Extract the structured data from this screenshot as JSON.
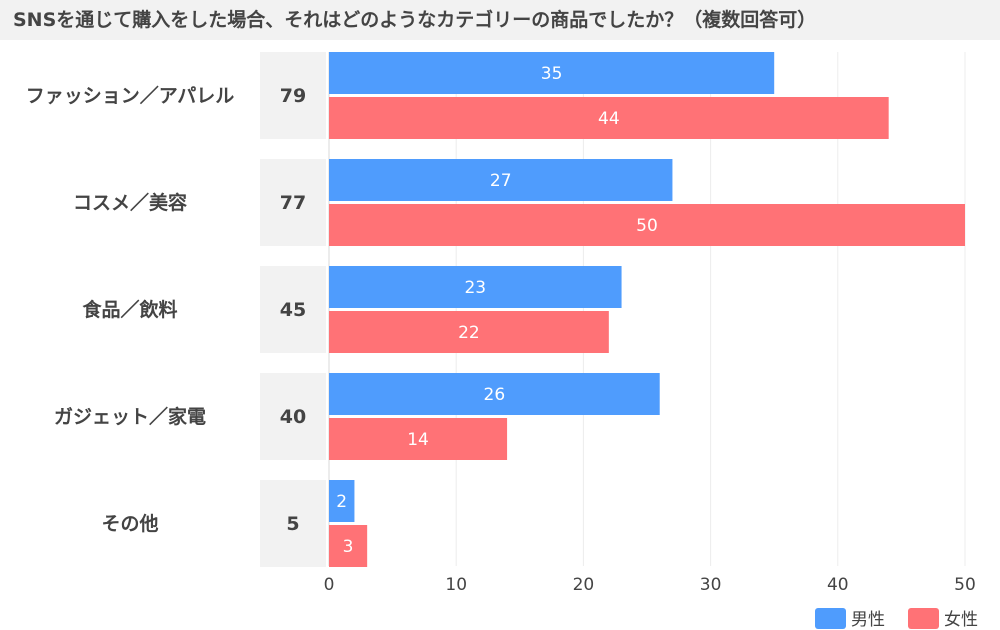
{
  "chart_data": {
    "type": "bar",
    "orientation": "horizontal",
    "title": "SNSを通じて購入をした場合、それはどのようなカテゴリーの商品でしたか？（複数回答可）",
    "categories": [
      "ファッション／アパレル",
      "コスメ／美容",
      "食品／飲料",
      "ガジェット／家電",
      "その他"
    ],
    "totals": [
      79,
      77,
      45,
      40,
      5
    ],
    "series": [
      {
        "name": "男性",
        "color": "#4f9cfd",
        "values": [
          35,
          27,
          23,
          26,
          2
        ]
      },
      {
        "name": "女性",
        "color": "#ff7276",
        "values": [
          44,
          50,
          22,
          14,
          3
        ]
      }
    ],
    "xlim": [
      0,
      50
    ],
    "xticks": [
      0,
      10,
      20,
      30,
      40,
      50
    ],
    "grid": true,
    "legend": "bottom-right"
  }
}
